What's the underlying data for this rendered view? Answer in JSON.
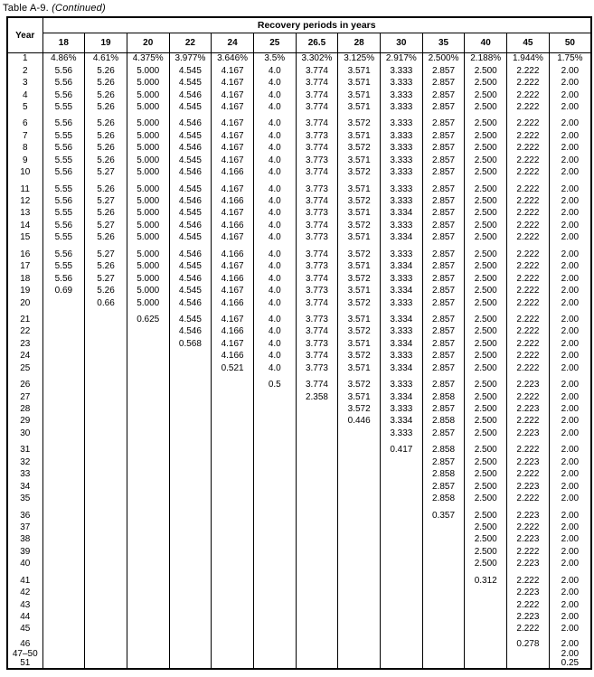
{
  "page": {
    "title_prefix": "Table A-9. ",
    "title_suffix": "(Continued)"
  },
  "table": {
    "year_header": "Year",
    "group_header": "Recovery periods in years",
    "columns": [
      "18",
      "19",
      "20",
      "22",
      "24",
      "25",
      "26.5",
      "28",
      "30",
      "35",
      "40",
      "45",
      "50"
    ],
    "rows": [
      {
        "year": "1",
        "values": [
          "4.86%",
          "4.61%",
          "4.375%",
          "3.977%",
          "3.646%",
          "3.5%",
          "3.302%",
          "3.125%",
          "2.917%",
          "2.500%",
          "2.188%",
          "1.944%",
          "1.75%"
        ]
      },
      {
        "year": "2",
        "values": [
          "5.56",
          "5.26",
          "5.000",
          "4.545",
          "4.167",
          "4.0",
          "3.774",
          "3.571",
          "3.333",
          "2.857",
          "2.500",
          "2.222",
          "2.00"
        ]
      },
      {
        "year": "3",
        "values": [
          "5.56",
          "5.26",
          "5.000",
          "4.545",
          "4.167",
          "4.0",
          "3.774",
          "3.571",
          "3.333",
          "2.857",
          "2.500",
          "2.222",
          "2.00"
        ]
      },
      {
        "year": "4",
        "values": [
          "5.56",
          "5.26",
          "5.000",
          "4.546",
          "4.167",
          "4.0",
          "3.774",
          "3.571",
          "3.333",
          "2.857",
          "2.500",
          "2.222",
          "2.00"
        ]
      },
      {
        "year": "5",
        "values": [
          "5.55",
          "5.26",
          "5.000",
          "4.545",
          "4.167",
          "4.0",
          "3.774",
          "3.571",
          "3.333",
          "2.857",
          "2.500",
          "2.222",
          "2.00"
        ]
      },
      {
        "year": "6",
        "values": [
          "5.56",
          "5.26",
          "5.000",
          "4.546",
          "4.167",
          "4.0",
          "3.774",
          "3.572",
          "3.333",
          "2.857",
          "2.500",
          "2.222",
          "2.00"
        ]
      },
      {
        "year": "7",
        "values": [
          "5.55",
          "5.26",
          "5.000",
          "4.545",
          "4.167",
          "4.0",
          "3.773",
          "3.571",
          "3.333",
          "2.857",
          "2.500",
          "2.222",
          "2.00"
        ]
      },
      {
        "year": "8",
        "values": [
          "5.56",
          "5.26",
          "5.000",
          "4.546",
          "4.167",
          "4.0",
          "3.774",
          "3.572",
          "3.333",
          "2.857",
          "2.500",
          "2.222",
          "2.00"
        ]
      },
      {
        "year": "9",
        "values": [
          "5.55",
          "5.26",
          "5.000",
          "4.545",
          "4.167",
          "4.0",
          "3.773",
          "3.571",
          "3.333",
          "2.857",
          "2.500",
          "2.222",
          "2.00"
        ]
      },
      {
        "year": "10",
        "values": [
          "5.56",
          "5.27",
          "5.000",
          "4.546",
          "4.166",
          "4.0",
          "3.774",
          "3.572",
          "3.333",
          "2.857",
          "2.500",
          "2.222",
          "2.00"
        ]
      },
      {
        "year": "11",
        "values": [
          "5.55",
          "5.26",
          "5.000",
          "4.545",
          "4.167",
          "4.0",
          "3.773",
          "3.571",
          "3.333",
          "2.857",
          "2.500",
          "2.222",
          "2.00"
        ]
      },
      {
        "year": "12",
        "values": [
          "5.56",
          "5.27",
          "5.000",
          "4.546",
          "4.166",
          "4.0",
          "3.774",
          "3.572",
          "3.333",
          "2.857",
          "2.500",
          "2.222",
          "2.00"
        ]
      },
      {
        "year": "13",
        "values": [
          "5.55",
          "5.26",
          "5.000",
          "4.545",
          "4.167",
          "4.0",
          "3.773",
          "3.571",
          "3.334",
          "2.857",
          "2.500",
          "2.222",
          "2.00"
        ]
      },
      {
        "year": "14",
        "values": [
          "5.56",
          "5.27",
          "5.000",
          "4.546",
          "4.166",
          "4.0",
          "3.774",
          "3.572",
          "3.333",
          "2.857",
          "2.500",
          "2.222",
          "2.00"
        ]
      },
      {
        "year": "15",
        "values": [
          "5.55",
          "5.26",
          "5.000",
          "4.545",
          "4.167",
          "4.0",
          "3.773",
          "3.571",
          "3.334",
          "2.857",
          "2.500",
          "2.222",
          "2.00"
        ]
      },
      {
        "year": "16",
        "values": [
          "5.56",
          "5.27",
          "5.000",
          "4.546",
          "4.166",
          "4.0",
          "3.774",
          "3.572",
          "3.333",
          "2.857",
          "2.500",
          "2.222",
          "2.00"
        ]
      },
      {
        "year": "17",
        "values": [
          "5.55",
          "5.26",
          "5.000",
          "4.545",
          "4.167",
          "4.0",
          "3.773",
          "3.571",
          "3.334",
          "2.857",
          "2.500",
          "2.222",
          "2.00"
        ]
      },
      {
        "year": "18",
        "values": [
          "5.56",
          "5.27",
          "5.000",
          "4.546",
          "4.166",
          "4.0",
          "3.774",
          "3.572",
          "3.333",
          "2.857",
          "2.500",
          "2.222",
          "2.00"
        ]
      },
      {
        "year": "19",
        "values": [
          "0.69",
          "5.26",
          "5.000",
          "4.545",
          "4.167",
          "4.0",
          "3.773",
          "3.571",
          "3.334",
          "2.857",
          "2.500",
          "2.222",
          "2.00"
        ]
      },
      {
        "year": "20",
        "values": [
          "",
          "0.66",
          "5.000",
          "4.546",
          "4.166",
          "4.0",
          "3.774",
          "3.572",
          "3.333",
          "2.857",
          "2.500",
          "2.222",
          "2.00"
        ]
      },
      {
        "year": "21",
        "values": [
          "",
          "",
          "0.625",
          "4.545",
          "4.167",
          "4.0",
          "3.773",
          "3.571",
          "3.334",
          "2.857",
          "2.500",
          "2.222",
          "2.00"
        ]
      },
      {
        "year": "22",
        "values": [
          "",
          "",
          "",
          "4.546",
          "4.166",
          "4.0",
          "3.774",
          "3.572",
          "3.333",
          "2.857",
          "2.500",
          "2.222",
          "2.00"
        ]
      },
      {
        "year": "23",
        "values": [
          "",
          "",
          "",
          "0.568",
          "4.167",
          "4.0",
          "3.773",
          "3.571",
          "3.334",
          "2.857",
          "2.500",
          "2.222",
          "2.00"
        ]
      },
      {
        "year": "24",
        "values": [
          "",
          "",
          "",
          "",
          "4.166",
          "4.0",
          "3.774",
          "3.572",
          "3.333",
          "2.857",
          "2.500",
          "2.222",
          "2.00"
        ]
      },
      {
        "year": "25",
        "values": [
          "",
          "",
          "",
          "",
          "0.521",
          "4.0",
          "3.773",
          "3.571",
          "3.334",
          "2.857",
          "2.500",
          "2.222",
          "2.00"
        ]
      },
      {
        "year": "26",
        "values": [
          "",
          "",
          "",
          "",
          "",
          "0.5",
          "3.774",
          "3.572",
          "3.333",
          "2.857",
          "2.500",
          "2.223",
          "2.00"
        ]
      },
      {
        "year": "27",
        "values": [
          "",
          "",
          "",
          "",
          "",
          "",
          "2.358",
          "3.571",
          "3.334",
          "2.858",
          "2.500",
          "2.222",
          "2.00"
        ]
      },
      {
        "year": "28",
        "values": [
          "",
          "",
          "",
          "",
          "",
          "",
          "",
          "3.572",
          "3.333",
          "2.857",
          "2.500",
          "2.223",
          "2.00"
        ]
      },
      {
        "year": "29",
        "values": [
          "",
          "",
          "",
          "",
          "",
          "",
          "",
          "0.446",
          "3.334",
          "2.858",
          "2.500",
          "2.222",
          "2.00"
        ]
      },
      {
        "year": "30",
        "values": [
          "",
          "",
          "",
          "",
          "",
          "",
          "",
          "",
          "3.333",
          "2.857",
          "2.500",
          "2.223",
          "2.00"
        ]
      },
      {
        "year": "31",
        "values": [
          "",
          "",
          "",
          "",
          "",
          "",
          "",
          "",
          "0.417",
          "2.858",
          "2.500",
          "2.222",
          "2.00"
        ]
      },
      {
        "year": "32",
        "values": [
          "",
          "",
          "",
          "",
          "",
          "",
          "",
          "",
          "",
          "2.857",
          "2.500",
          "2.223",
          "2.00"
        ]
      },
      {
        "year": "33",
        "values": [
          "",
          "",
          "",
          "",
          "",
          "",
          "",
          "",
          "",
          "2.858",
          "2.500",
          "2.222",
          "2.00"
        ]
      },
      {
        "year": "34",
        "values": [
          "",
          "",
          "",
          "",
          "",
          "",
          "",
          "",
          "",
          "2.857",
          "2.500",
          "2.223",
          "2.00"
        ]
      },
      {
        "year": "35",
        "values": [
          "",
          "",
          "",
          "",
          "",
          "",
          "",
          "",
          "",
          "2.858",
          "2.500",
          "2.222",
          "2.00"
        ]
      },
      {
        "year": "36",
        "values": [
          "",
          "",
          "",
          "",
          "",
          "",
          "",
          "",
          "",
          "0.357",
          "2.500",
          "2.223",
          "2.00"
        ]
      },
      {
        "year": "37",
        "values": [
          "",
          "",
          "",
          "",
          "",
          "",
          "",
          "",
          "",
          "",
          "2.500",
          "2.222",
          "2.00"
        ]
      },
      {
        "year": "38",
        "values": [
          "",
          "",
          "",
          "",
          "",
          "",
          "",
          "",
          "",
          "",
          "2.500",
          "2.223",
          "2.00"
        ]
      },
      {
        "year": "39",
        "values": [
          "",
          "",
          "",
          "",
          "",
          "",
          "",
          "",
          "",
          "",
          "2.500",
          "2.222",
          "2.00"
        ]
      },
      {
        "year": "40",
        "values": [
          "",
          "",
          "",
          "",
          "",
          "",
          "",
          "",
          "",
          "",
          "2.500",
          "2.223",
          "2.00"
        ]
      },
      {
        "year": "41",
        "values": [
          "",
          "",
          "",
          "",
          "",
          "",
          "",
          "",
          "",
          "",
          "0.312",
          "2.222",
          "2.00"
        ]
      },
      {
        "year": "42",
        "values": [
          "",
          "",
          "",
          "",
          "",
          "",
          "",
          "",
          "",
          "",
          "",
          "2.223",
          "2.00"
        ]
      },
      {
        "year": "43",
        "values": [
          "",
          "",
          "",
          "",
          "",
          "",
          "",
          "",
          "",
          "",
          "",
          "2.222",
          "2.00"
        ]
      },
      {
        "year": "44",
        "values": [
          "",
          "",
          "",
          "",
          "",
          "",
          "",
          "",
          "",
          "",
          "",
          "2.223",
          "2.00"
        ]
      },
      {
        "year": "45",
        "values": [
          "",
          "",
          "",
          "",
          "",
          "",
          "",
          "",
          "",
          "",
          "",
          "2.222",
          "2.00"
        ]
      },
      {
        "year": "46",
        "values": [
          "",
          "",
          "",
          "",
          "",
          "",
          "",
          "",
          "",
          "",
          "",
          "0.278",
          "2.00"
        ]
      },
      {
        "year": "47–50",
        "values": [
          "",
          "",
          "",
          "",
          "",
          "",
          "",
          "",
          "",
          "",
          "",
          "",
          "2.00"
        ]
      },
      {
        "year": "51",
        "values": [
          "",
          "",
          "",
          "",
          "",
          "",
          "",
          "",
          "",
          "",
          "",
          "",
          "0.25"
        ]
      }
    ]
  }
}
